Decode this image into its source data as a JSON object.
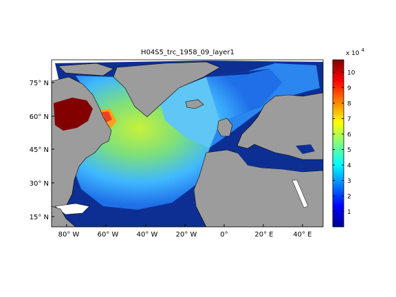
{
  "title": "H04S5_trc_1958_09_layer1",
  "map": {
    "lat_ticks": [
      "75° N",
      "60° N",
      "45° N",
      "30° N",
      "15° N"
    ],
    "lon_ticks": [
      "80° W",
      "60° W",
      "40° W",
      "20° W",
      "0°",
      "20° E",
      "40° E"
    ],
    "lat_range": [
      10,
      85
    ],
    "lon_range": [
      -90,
      50
    ],
    "land_color": "#9c9c9c",
    "low_color": "#0b2a8a"
  },
  "colorbar": {
    "scale_label": "x 10",
    "scale_exponent": "4",
    "ticks": [
      "10",
      "9",
      "8",
      "7",
      "6",
      "5",
      "4",
      "3",
      "2",
      "1"
    ],
    "tick_values": [
      10,
      9,
      8,
      7,
      6,
      5,
      4,
      3,
      2,
      1
    ],
    "min": 0,
    "max": 10.8,
    "colormap": "jet"
  }
}
